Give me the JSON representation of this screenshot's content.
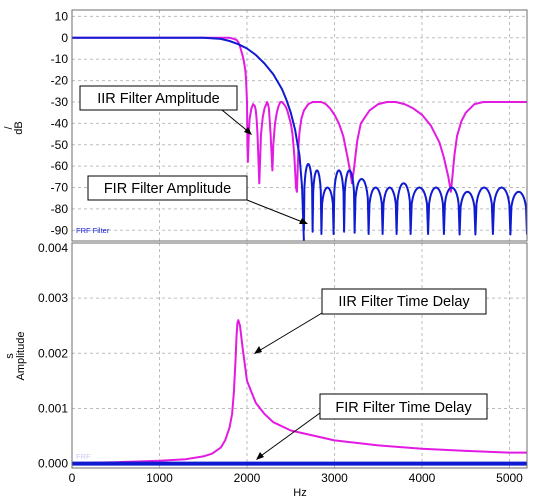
{
  "chart_data": [
    {
      "type": "line",
      "panel": "top",
      "title": "",
      "xlabel": "",
      "ylabel_unit": "/",
      "ylabel": "dB",
      "xlim": [
        0,
        5200
      ],
      "ylim": [
        -95,
        13
      ],
      "yticks": [
        10,
        0,
        -10,
        -20,
        -30,
        -40,
        -50,
        -60,
        -70,
        -80,
        -90
      ],
      "xgrid": [
        1000,
        2000,
        3000,
        4000,
        5000
      ],
      "grid": true,
      "legend_note": "FRF Filter",
      "series": [
        {
          "color": "#e21ae2",
          "x": [
            0,
            1700,
            1800,
            1850,
            1880,
            1900,
            1920,
            1940,
            1960,
            1980,
            1990,
            2000,
            2005,
            2010,
            2020,
            2030,
            2050,
            2070,
            2090,
            2100,
            2110,
            2120,
            2140,
            2160,
            2180,
            2200,
            2220,
            2230,
            2240,
            2250,
            2270,
            2290,
            2300,
            2320,
            2340,
            2360,
            2380,
            2400,
            2420,
            2440,
            2460,
            2480,
            2500,
            2520,
            2540,
            2550,
            2560,
            2570,
            2580,
            2590,
            2600,
            2620,
            2650,
            2700,
            2750,
            2800,
            2850,
            2900,
            2950,
            3000,
            3050,
            3100,
            3150,
            3180,
            3200,
            3220,
            3240,
            3260,
            3300,
            3400,
            3500,
            3600,
            3700,
            3800,
            3900,
            4000,
            4100,
            4200,
            4250,
            4300,
            4330,
            4350,
            4370,
            4400,
            4450,
            4500,
            4600,
            4700,
            4800,
            4900,
            5000,
            5100,
            5200
          ],
          "y": [
            0,
            0,
            0,
            -0.5,
            -1,
            -2,
            -4,
            -7,
            -10,
            -15,
            -20,
            -30,
            -50,
            -58,
            -45,
            -38,
            -33,
            -31,
            -32,
            -34,
            -38,
            -45,
            -68,
            -45,
            -37,
            -33,
            -31,
            -30,
            -31,
            -33,
            -45,
            -62,
            -50,
            -40,
            -35,
            -32,
            -30,
            -30,
            -31,
            -32,
            -34,
            -37,
            -40,
            -45,
            -55,
            -62,
            -70,
            -72,
            -60,
            -50,
            -44,
            -38,
            -34,
            -31,
            -30,
            -30,
            -30,
            -31,
            -33,
            -36,
            -40,
            -46,
            -56,
            -63,
            -68,
            -62,
            -55,
            -48,
            -40,
            -34,
            -31,
            -30,
            -30,
            -31,
            -33,
            -36,
            -41,
            -49,
            -56,
            -65,
            -72,
            -64,
            -55,
            -46,
            -39,
            -35,
            -31,
            -30,
            -30,
            -30,
            -30,
            -30,
            -30
          ]
        },
        {
          "color": "#0f1bd0",
          "x": [
            0,
            1500,
            1700,
            1800,
            1900,
            2000,
            2100,
            2200,
            2300,
            2400,
            2450,
            2500,
            2550,
            2600,
            2630,
            2650
          ],
          "y": [
            0,
            0,
            -0.5,
            -1.5,
            -3,
            -5,
            -8,
            -12,
            -17,
            -24,
            -29,
            -35,
            -43,
            -55,
            -70,
            -95
          ]
        },
        {
          "color": "#0f1bd0",
          "scallop_nulls": [
            2650,
            2750,
            2850,
            2990,
            3110,
            3230,
            3390,
            3550,
            3710,
            3870,
            4070,
            4250,
            4430,
            4610,
            4810,
            5010,
            5200
          ],
          "scallop_peaks": [
            -59,
            -62,
            -70,
            -62,
            -62,
            -66,
            -70,
            -70,
            -68,
            -70,
            -70,
            -70,
            -72,
            -70,
            -70,
            -72
          ]
        }
      ]
    },
    {
      "type": "line",
      "panel": "bottom",
      "title": "",
      "xlabel": "Hz",
      "ylabel_unit": "s",
      "ylabel": "Amplitude",
      "xlim": [
        0,
        5200
      ],
      "ylim": [
        -8e-05,
        0.004
      ],
      "yticks": [
        0.004,
        0.003,
        0.002,
        0.001,
        0.0
      ],
      "yticklabels": [
        "0.004",
        "0.003",
        "0.002",
        "0.001",
        "0.000"
      ],
      "xticks": [
        0,
        1000,
        2000,
        3000,
        4000,
        5000
      ],
      "grid": true,
      "legend_note": "FRF",
      "series": [
        {
          "color": "#e21ae2",
          "x": [
            0,
            500,
            1000,
            1300,
            1500,
            1600,
            1700,
            1750,
            1800,
            1830,
            1850,
            1870,
            1880,
            1890,
            1900,
            1920,
            1950,
            2000,
            2100,
            2200,
            2300,
            2500,
            3000,
            3500,
            4000,
            4500,
            5000,
            5200
          ],
          "y": [
            1e-05,
            2.5e-05,
            5e-05,
            8e-05,
            0.00013,
            0.00018,
            0.00029,
            0.00042,
            0.00065,
            0.0009,
            0.0013,
            0.0019,
            0.0023,
            0.00255,
            0.0026,
            0.0025,
            0.0021,
            0.0015,
            0.0011,
            0.0009,
            0.00075,
            0.0006,
            0.00042,
            0.00033,
            0.00027,
            0.00023,
            0.0002,
            0.0002
          ]
        },
        {
          "color": "#0f1bd0",
          "x": [
            0,
            5200
          ],
          "y": [
            0.0,
            0.0
          ]
        }
      ]
    }
  ],
  "annotations": {
    "iir_amplitude": "IIR Filter Amplitude",
    "fir_amplitude": "FIR Filter Amplitude",
    "iir_delay": "IIR Filter Time Delay",
    "fir_delay": "FIR Filter Time Delay"
  }
}
